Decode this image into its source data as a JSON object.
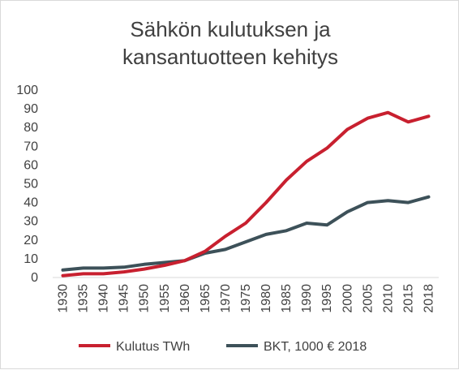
{
  "chart_data": {
    "type": "line",
    "title_lines": [
      "Sähkön kulutuksen ja",
      "kansantuotteen kehitys"
    ],
    "x": [
      "1930",
      "1935",
      "1940",
      "1945",
      "1950",
      "1955",
      "1960",
      "1965",
      "1970",
      "1975",
      "1980",
      "1985",
      "1990",
      "1995",
      "2000",
      "2005",
      "2010",
      "2015",
      "2018"
    ],
    "yticks": [
      "0",
      "10",
      "20",
      "30",
      "40",
      "50",
      "60",
      "70",
      "80",
      "90",
      "100"
    ],
    "ylim": [
      0,
      100
    ],
    "grid": false,
    "legend": "bottom",
    "series": [
      {
        "name": "Kulutus TWh",
        "color": "#c8202f",
        "values": [
          1,
          2,
          2,
          3,
          4.5,
          6.5,
          9,
          14,
          22,
          29,
          40,
          52,
          62,
          69,
          79,
          85,
          88,
          83,
          86
        ]
      },
      {
        "name": "BKT, 1000 € 2018",
        "color": "#3d5159",
        "values": [
          4,
          5,
          5,
          5.5,
          7,
          8,
          9,
          13,
          15,
          19,
          23,
          25,
          29,
          28,
          35,
          40,
          41,
          40,
          43
        ]
      }
    ]
  }
}
